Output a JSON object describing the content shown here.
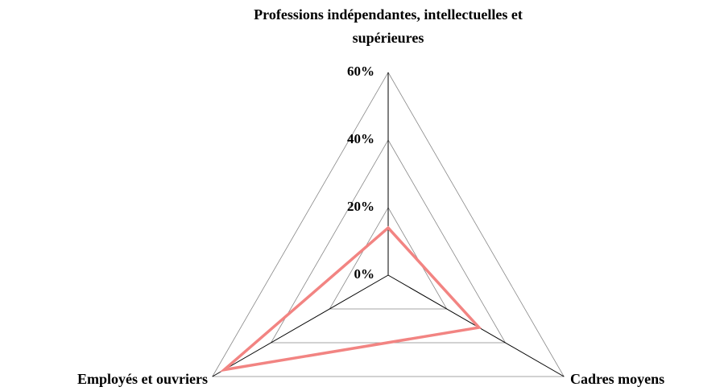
{
  "chart_data": {
    "type": "radar",
    "categories": [
      "Professions indépendantes, intellectuelles et supérieures",
      "Cadres moyens",
      "Employés et ouvriers"
    ],
    "series": [
      {
        "name": null,
        "color": "#f28482",
        "values": [
          14,
          31,
          56
        ]
      }
    ],
    "rlim": [
      0,
      60
    ],
    "rticks": [
      {
        "value": 0,
        "label": "0%"
      },
      {
        "value": 20,
        "label": "20%"
      },
      {
        "value": 40,
        "label": "40%"
      },
      {
        "value": 60,
        "label": "60%"
      }
    ],
    "grid": true
  }
}
